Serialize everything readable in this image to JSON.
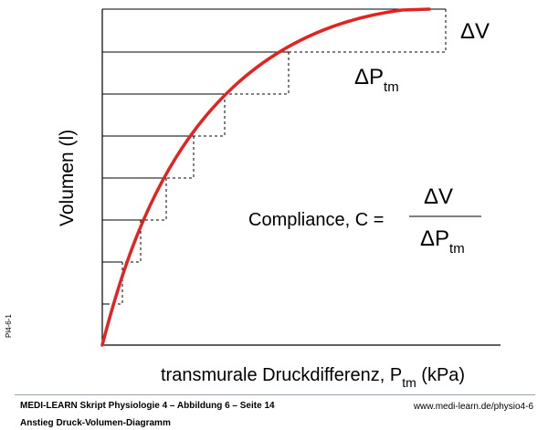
{
  "figure_id": "Pl4-6-1",
  "axes": {
    "y_label": "Volumen (l)",
    "x_label": "transmurale Druckdifferenz, P",
    "x_label_sub": "tm",
    "x_label_unit": " (kPa)"
  },
  "annotations": {
    "delta_v": "ΔV",
    "delta_p": "ΔP",
    "delta_p_sub": "tm",
    "formula_lhs": "Compliance, C =",
    "formula_num": "ΔV",
    "formula_den": "ΔP",
    "formula_den_sub": "tm"
  },
  "footer": {
    "line1": "MEDI-LEARN Skript Physiologie 4 – Abbildung 6 – Seite 14",
    "line2": "Anstieg Druck-Volumen-Diagramm",
    "url": "www.medi-learn.de/physio4-6"
  },
  "colors": {
    "curve": "#e32320",
    "lines": "#000000"
  }
}
